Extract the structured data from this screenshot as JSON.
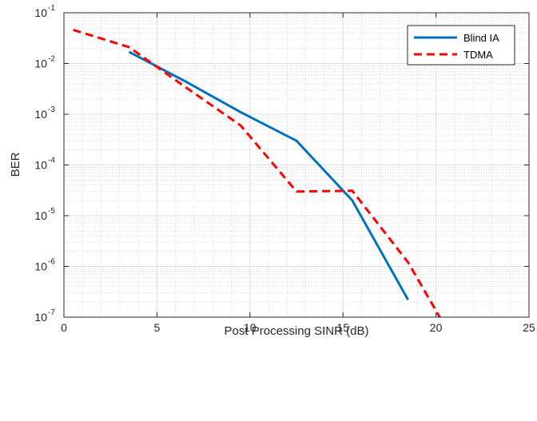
{
  "chart_data": {
    "type": "line",
    "xlabel": "Post Processing SINR (dB)",
    "ylabel": "BER",
    "xlim": [
      0,
      25
    ],
    "ylim": [
      1e-07,
      0.1
    ],
    "yscale": "log",
    "grid": true,
    "minor_grid": true,
    "legend_position": "top-right",
    "xticks": [
      0,
      5,
      10,
      15,
      20,
      25
    ],
    "yticks": [
      {
        "value": 0.1,
        "base": "10",
        "exp": "-1"
      },
      {
        "value": 0.01,
        "base": "10",
        "exp": "-2"
      },
      {
        "value": 0.001,
        "base": "10",
        "exp": "-3"
      },
      {
        "value": 0.0001,
        "base": "10",
        "exp": "-4"
      },
      {
        "value": 1e-05,
        "base": "10",
        "exp": "-5"
      },
      {
        "value": 1e-06,
        "base": "10",
        "exp": "-6"
      },
      {
        "value": 1e-07,
        "base": "10",
        "exp": "-7"
      }
    ],
    "series": [
      {
        "name": "Blind IA",
        "color": "#0072BD",
        "style": "solid",
        "x": [
          3.5,
          6.5,
          9.5,
          12.5,
          15.5,
          18.5
        ],
        "y": [
          0.017,
          0.0045,
          0.0011,
          0.0003,
          2e-05,
          2.2e-07
        ]
      },
      {
        "name": "TDMA",
        "color": "#FF0000",
        "style": "dashed",
        "x": [
          0.5,
          3.5,
          6.5,
          9.5,
          12.5,
          15.5,
          18.5,
          20.2
        ],
        "y": [
          0.046,
          0.021,
          0.0035,
          0.0006,
          3e-05,
          3.1e-05,
          1.2e-06,
          1e-07
        ]
      }
    ]
  }
}
